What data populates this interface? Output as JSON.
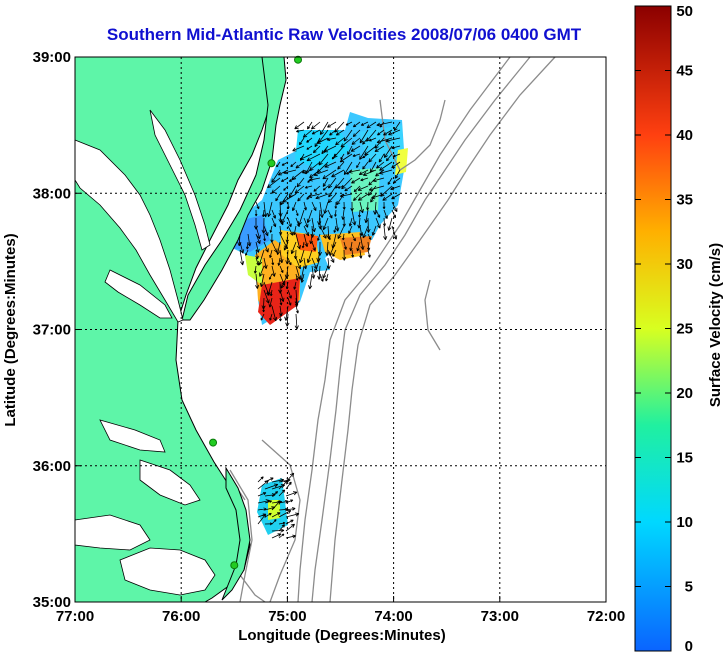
{
  "title": "Southern Mid-Atlantic Raw Velocities 2008/07/06 0400 GMT",
  "xlabel": "Longitude (Degrees:Minutes)",
  "ylabel": "Latitude (Degrees:Minutes)",
  "colorbar_label": "Surface Velocity (cm/s)",
  "colors": {
    "land": "#5ef5a8",
    "coast": "#000000",
    "bathymetry": "#8c8c8c",
    "title": "#1010d0",
    "station": "#22cc22"
  },
  "chart_data": {
    "type": "heatmap",
    "title": "Southern Mid-Atlantic Raw Velocities 2008/07/06 0400 GMT",
    "xlabel": "Longitude (Degrees:Minutes)",
    "ylabel": "Latitude (Degrees:Minutes)",
    "x_ticks": [
      "77:00",
      "76:00",
      "75:00",
      "74:00",
      "73:00",
      "72:00"
    ],
    "y_ticks": [
      "39:00",
      "38:00",
      "37:00",
      "36:00",
      "35:00"
    ],
    "xlim_lon_west": [
      77,
      72
    ],
    "ylim_lat": [
      35,
      39
    ],
    "grid": true,
    "colorbar": {
      "label": "Surface Velocity (cm/s)",
      "min": 0,
      "max": 50,
      "ticks": [
        "0",
        "5",
        "10",
        "15",
        "20",
        "25",
        "30",
        "35",
        "40",
        "45",
        "50"
      ]
    },
    "stations": [
      {
        "lon": 74.9,
        "lat": 38.98
      },
      {
        "lon": 75.15,
        "lat": 38.22
      },
      {
        "lon": 75.7,
        "lat": 36.17
      },
      {
        "lon": 75.5,
        "lat": 35.27
      }
    ]
  }
}
